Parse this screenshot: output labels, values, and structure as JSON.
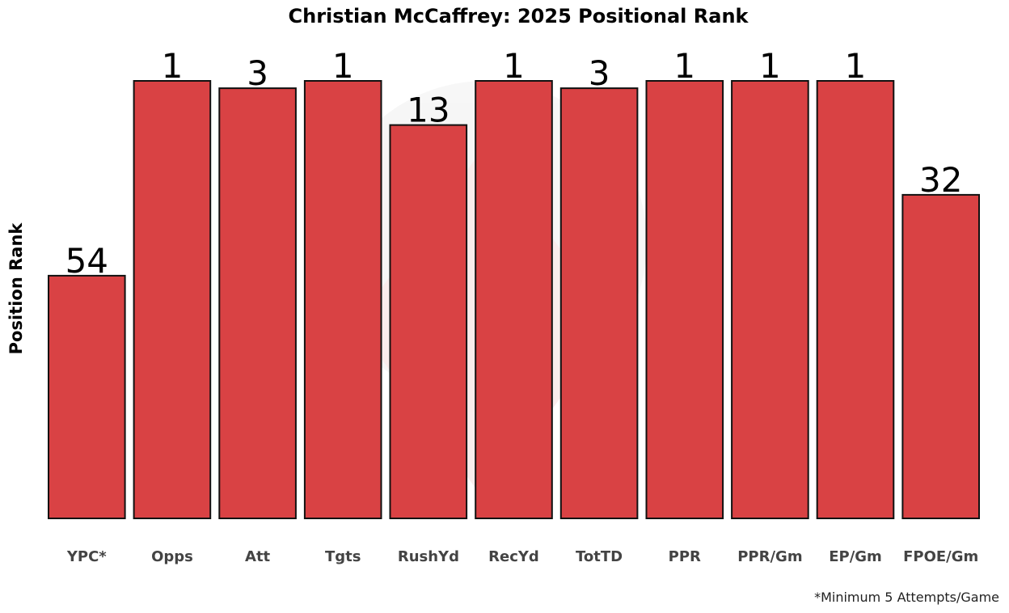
{
  "chart_data": {
    "type": "bar",
    "title": "Christian McCaffrey: 2025 Positional Rank",
    "ylabel": "Position Rank",
    "xlabel": "",
    "categories": [
      "YPC*",
      "Opps",
      "Att",
      "Tgts",
      "RushYd",
      "RecYd",
      "TotTD",
      "PPR",
      "PPR/Gm",
      "EP/Gm",
      "FPOE/Gm"
    ],
    "values": [
      54,
      1,
      3,
      1,
      13,
      1,
      3,
      1,
      1,
      1,
      32
    ],
    "value_labels": [
      "54",
      "1",
      "3",
      "1",
      "13",
      "1",
      "3",
      "1",
      "1",
      "1",
      "32"
    ],
    "scale": "rank, lower is better (taller bar)",
    "ylim": [
      120,
      1
    ],
    "y_ticks_shown": false,
    "grid": false,
    "legend": "none",
    "bar_color": "#d94244",
    "bar_edge_color": "#111111",
    "footnote": "*Minimum 5 Attempts/Game"
  }
}
